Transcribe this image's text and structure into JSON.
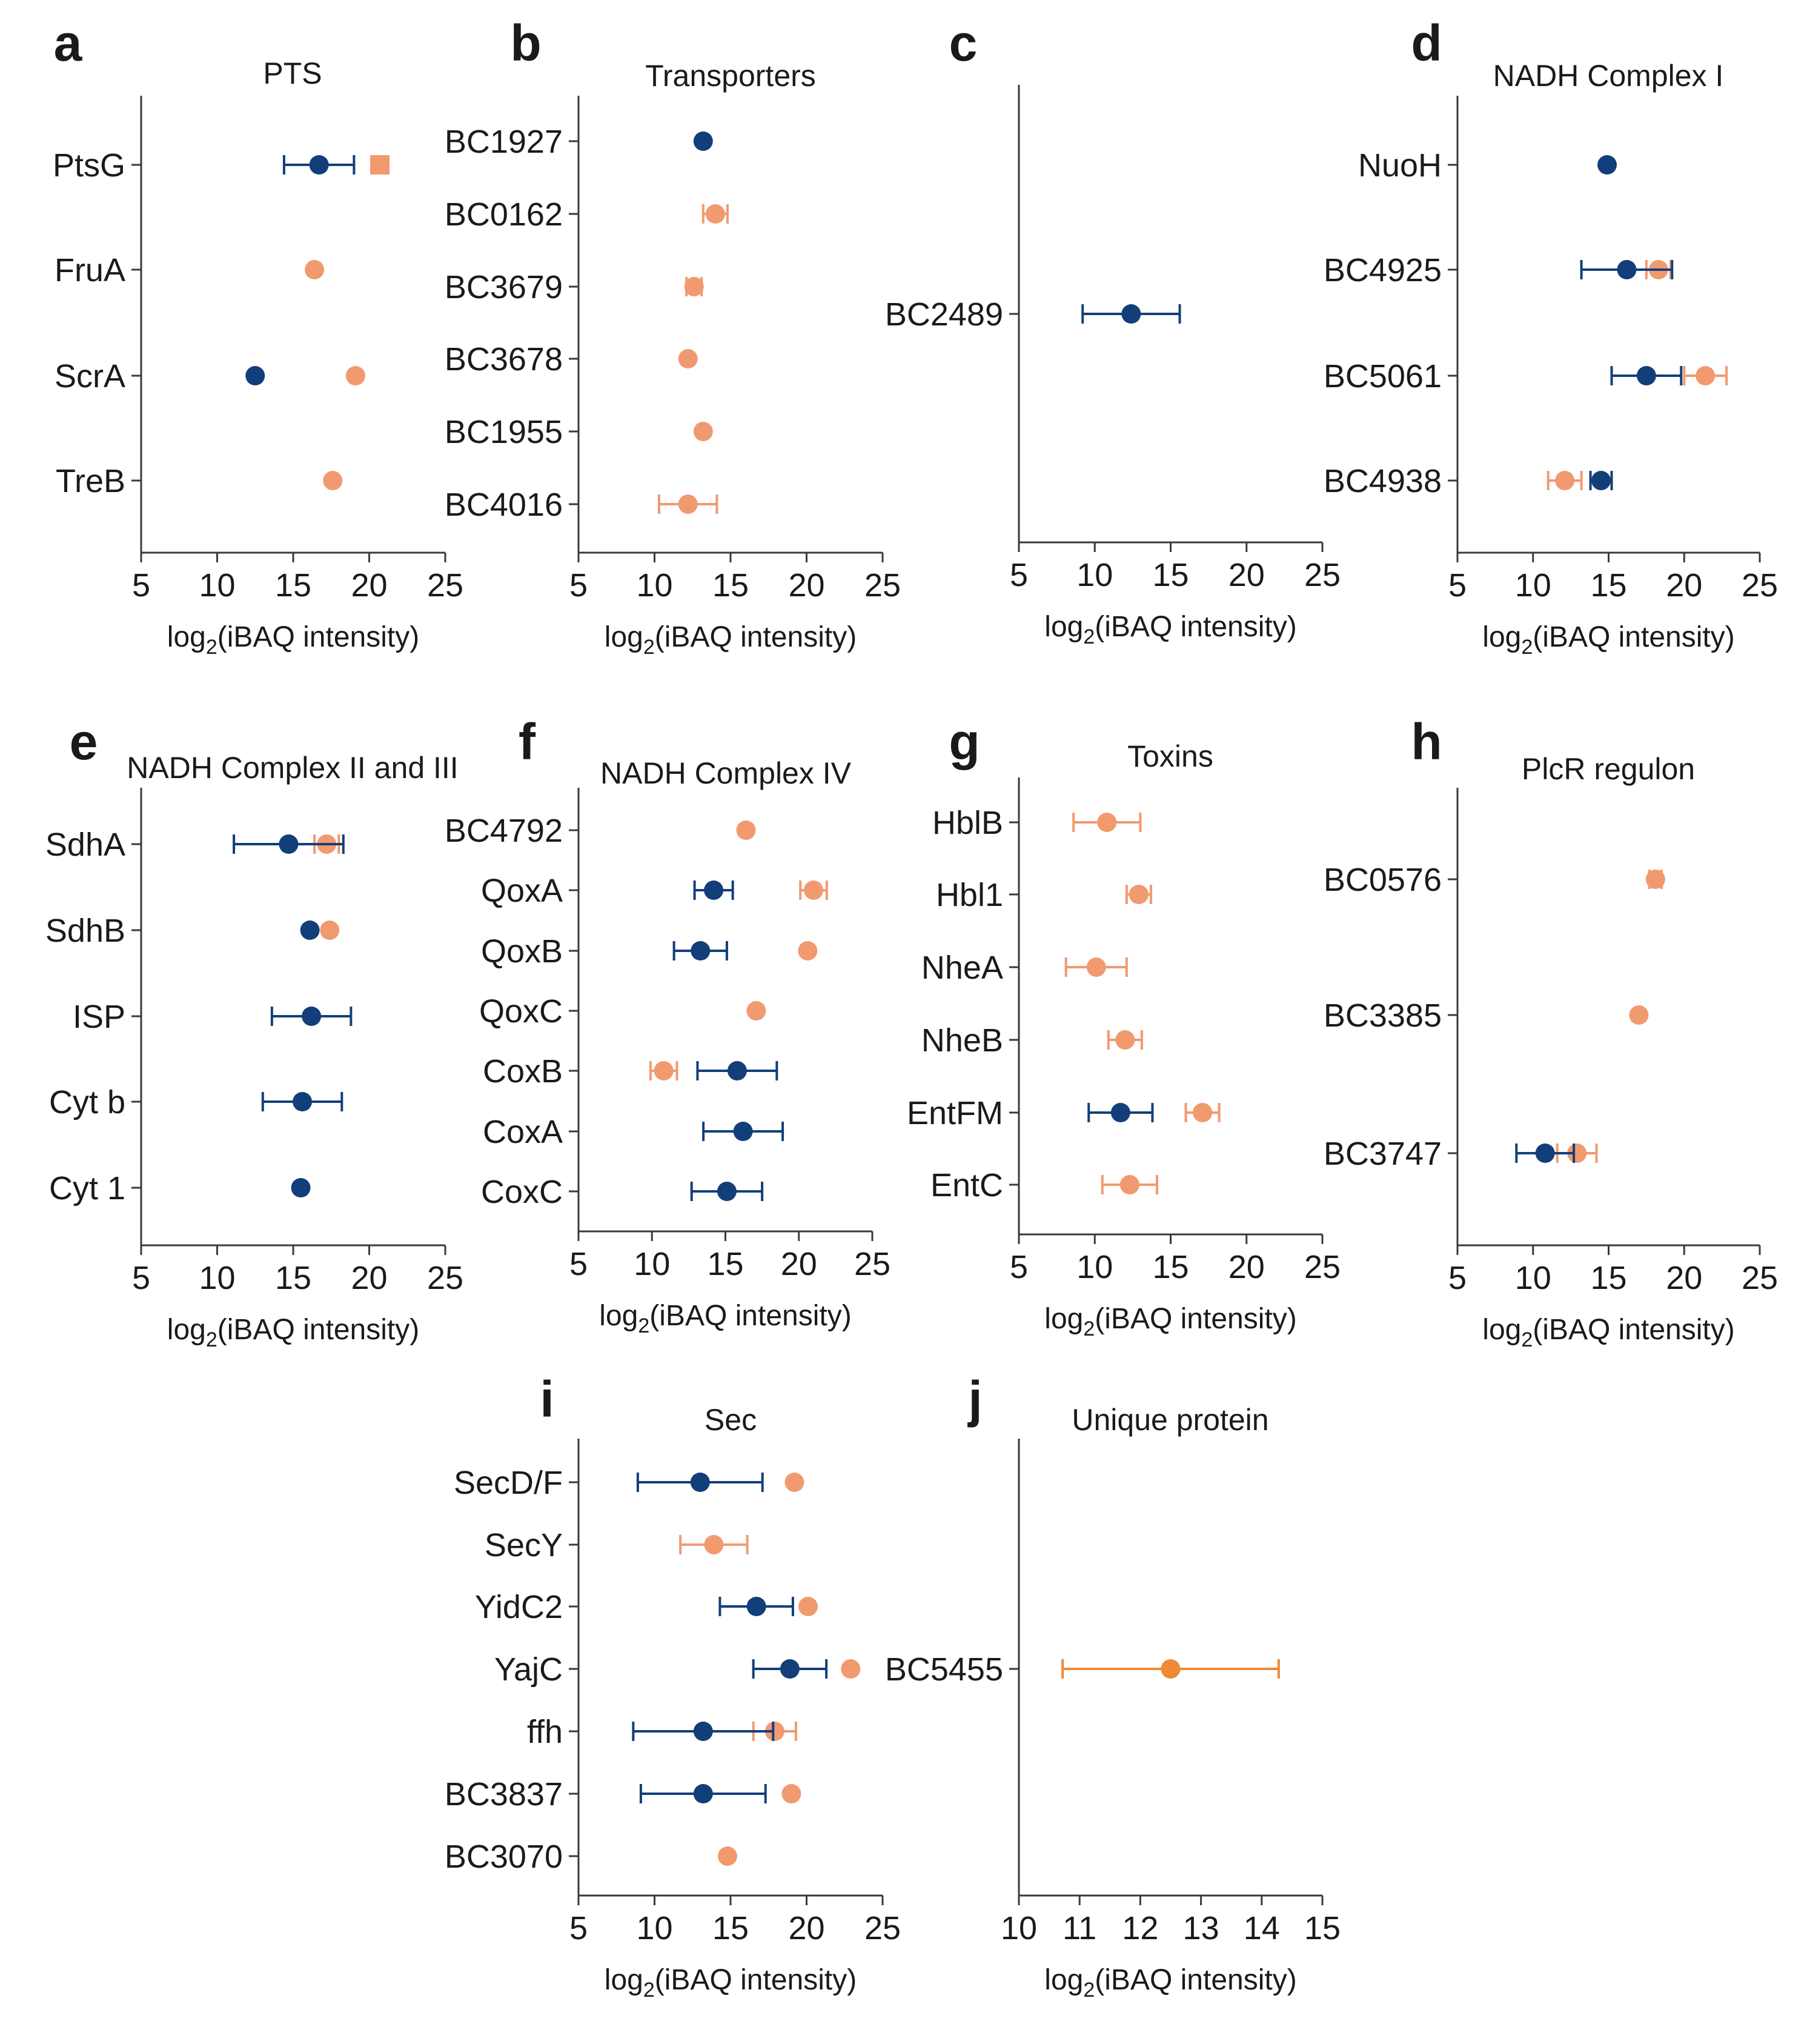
{
  "colors": {
    "blue": "#123f7a",
    "salmon": "#f19a70",
    "orange": "#ee8a35",
    "axis": "#3a3a3a"
  },
  "series_names": {
    "blue": "blue",
    "salmon": "salmon",
    "orange": "orange"
  },
  "chart_data": [
    {
      "id": "a",
      "letter": "a",
      "type": "scatter",
      "title": "PTS",
      "xlabel_prefix": "log",
      "xlabel_sub": "2",
      "xlabel_suffix": "(iBAQ intensity)",
      "xlim": [
        5,
        25
      ],
      "xticks": [
        5,
        10,
        15,
        20,
        25
      ],
      "xtick_labels": [
        "5",
        "10",
        "15",
        "20",
        "25"
      ],
      "categories": [
        "PtsG",
        "FruA",
        "ScrA",
        "TreB"
      ],
      "series": [
        {
          "name": "blue",
          "color": "#123f7a",
          "values": [
            16.7,
            null,
            12.5,
            null
          ],
          "err": [
            2.3,
            0,
            0,
            0
          ]
        },
        {
          "name": "salmon",
          "color": "#f19a70",
          "values": [
            20.7,
            16.4,
            19.1,
            17.6
          ],
          "err": [
            0,
            0,
            0,
            0
          ],
          "markers": [
            "square",
            "circle",
            "circle",
            "circle"
          ]
        }
      ]
    },
    {
      "id": "b",
      "letter": "b",
      "type": "scatter",
      "title": "Transporters",
      "xlabel_prefix": "log",
      "xlabel_sub": "2",
      "xlabel_suffix": "(iBAQ intensity)",
      "xlim": [
        5,
        25
      ],
      "xticks": [
        5,
        10,
        15,
        20,
        25
      ],
      "xtick_labels": [
        "5",
        "10",
        "15",
        "20",
        "25"
      ],
      "categories": [
        "BC1927",
        "BC0162",
        "BC3679",
        "BC3678",
        "BC1955",
        "BC4016"
      ],
      "series": [
        {
          "name": "blue",
          "color": "#123f7a",
          "values": [
            13.2,
            null,
            null,
            null,
            null,
            null
          ],
          "err": [
            0,
            0,
            0,
            0,
            0,
            0
          ]
        },
        {
          "name": "salmon",
          "color": "#f19a70",
          "values": [
            null,
            14.0,
            12.6,
            12.2,
            13.2,
            12.2
          ],
          "err": [
            0,
            0.8,
            0.5,
            0,
            0,
            1.9
          ]
        }
      ]
    },
    {
      "id": "c",
      "letter": "c",
      "type": "scatter",
      "title": "",
      "xlabel_prefix": "log",
      "xlabel_sub": "2",
      "xlabel_suffix": "(iBAQ intensity)",
      "xlim": [
        5,
        25
      ],
      "xticks": [
        5,
        10,
        15,
        20,
        25
      ],
      "xtick_labels": [
        "5",
        "10",
        "15",
        "20",
        "25"
      ],
      "categories": [
        "BC2489"
      ],
      "series": [
        {
          "name": "blue",
          "color": "#123f7a",
          "values": [
            12.4
          ],
          "err": [
            3.2
          ]
        }
      ]
    },
    {
      "id": "d",
      "letter": "d",
      "type": "scatter",
      "title": "NADH Complex I",
      "xlabel_prefix": "log",
      "xlabel_sub": "2",
      "xlabel_suffix": "(iBAQ intensity)",
      "xlim": [
        5,
        25
      ],
      "xticks": [
        5,
        10,
        15,
        20,
        25
      ],
      "xtick_labels": [
        "5",
        "10",
        "15",
        "20",
        "25"
      ],
      "categories": [
        "NuoH",
        "BC4925",
        "BC5061",
        "BC4938"
      ],
      "series": [
        {
          "name": "salmon",
          "color": "#f19a70",
          "values": [
            null,
            18.3,
            21.4,
            12.1
          ],
          "err": [
            0,
            0.8,
            1.4,
            1.1
          ]
        },
        {
          "name": "blue",
          "color": "#123f7a",
          "values": [
            14.9,
            16.2,
            17.5,
            14.5
          ],
          "err": [
            0,
            3.0,
            2.3,
            0.7
          ]
        }
      ]
    },
    {
      "id": "e",
      "letter": "e",
      "type": "scatter",
      "title": "NADH Complex II and III",
      "xlabel_prefix": "log",
      "xlabel_sub": "2",
      "xlabel_suffix": "(iBAQ intensity)",
      "xlim": [
        5,
        25
      ],
      "xticks": [
        5,
        10,
        15,
        20,
        25
      ],
      "xtick_labels": [
        "5",
        "10",
        "15",
        "20",
        "25"
      ],
      "categories": [
        "SdhA",
        "SdhB",
        "ISP",
        "Cyt b",
        "Cyt 1"
      ],
      "series": [
        {
          "name": "salmon",
          "color": "#f19a70",
          "values": [
            17.2,
            17.4,
            null,
            null,
            null
          ],
          "err": [
            0.8,
            0,
            0,
            0,
            0
          ]
        },
        {
          "name": "blue",
          "color": "#123f7a",
          "values": [
            14.7,
            16.1,
            16.2,
            15.6,
            15.5
          ],
          "err": [
            3.6,
            0,
            2.6,
            2.6,
            0
          ]
        }
      ]
    },
    {
      "id": "f",
      "letter": "f",
      "type": "scatter",
      "title": "NADH Complex IV",
      "xlabel_prefix": "log",
      "xlabel_sub": "2",
      "xlabel_suffix": "(iBAQ intensity)",
      "xlim": [
        5,
        25
      ],
      "xticks": [
        5,
        10,
        15,
        20,
        25
      ],
      "xtick_labels": [
        "5",
        "10",
        "15",
        "20",
        "25"
      ],
      "categories": [
        "BC4792",
        "QoxA",
        "QoxB",
        "QoxC",
        "CoxB",
        "CoxA",
        "CoxC"
      ],
      "series": [
        {
          "name": "salmon",
          "color": "#f19a70",
          "values": [
            16.4,
            21.0,
            20.6,
            17.1,
            10.8,
            null,
            null
          ],
          "err": [
            0,
            0.9,
            0,
            0,
            0.9,
            0,
            0
          ]
        },
        {
          "name": "blue",
          "color": "#123f7a",
          "values": [
            null,
            14.2,
            13.3,
            null,
            15.8,
            16.2,
            15.1
          ],
          "err": [
            0,
            1.3,
            1.8,
            0,
            2.7,
            2.7,
            2.4
          ]
        }
      ]
    },
    {
      "id": "g",
      "letter": "g",
      "type": "scatter",
      "title": "Toxins",
      "xlabel_prefix": "log",
      "xlabel_sub": "2",
      "xlabel_suffix": "(iBAQ intensity)",
      "xlim": [
        5,
        25
      ],
      "xticks": [
        5,
        10,
        15,
        20,
        25
      ],
      "xtick_labels": [
        "5",
        "10",
        "15",
        "20",
        "25"
      ],
      "categories": [
        "HblB",
        "Hbl1",
        "NheA",
        "NheB",
        "EntFM",
        "EntC"
      ],
      "series": [
        {
          "name": "salmon",
          "color": "#f19a70",
          "values": [
            10.8,
            12.9,
            10.1,
            12.0,
            17.1,
            12.3
          ],
          "err": [
            2.2,
            0.8,
            2.0,
            1.1,
            1.1,
            1.8
          ]
        },
        {
          "name": "blue",
          "color": "#123f7a",
          "values": [
            null,
            null,
            null,
            null,
            11.7,
            null
          ],
          "err": [
            0,
            0,
            0,
            0,
            2.1,
            0
          ]
        }
      ]
    },
    {
      "id": "h",
      "letter": "h",
      "type": "scatter",
      "title": "PlcR regulon",
      "xlabel_prefix": "log",
      "xlabel_sub": "2",
      "xlabel_suffix": "(iBAQ intensity)",
      "xlim": [
        5,
        25
      ],
      "xticks": [
        5,
        10,
        15,
        20,
        25
      ],
      "xtick_labels": [
        "5",
        "10",
        "15",
        "20",
        "25"
      ],
      "categories": [
        "BC0576",
        "BC3385",
        "BC3747"
      ],
      "series": [
        {
          "name": "salmon",
          "color": "#f19a70",
          "values": [
            18.1,
            17.0,
            12.9
          ],
          "err": [
            0.4,
            0,
            1.3
          ]
        },
        {
          "name": "blue",
          "color": "#123f7a",
          "values": [
            null,
            null,
            10.8
          ],
          "err": [
            0,
            0,
            1.9
          ]
        }
      ]
    },
    {
      "id": "i",
      "letter": "i",
      "type": "scatter",
      "title": "Sec",
      "xlabel_prefix": "log",
      "xlabel_sub": "2",
      "xlabel_suffix": "(iBAQ intensity)",
      "xlim": [
        5,
        25
      ],
      "xticks": [
        5,
        10,
        15,
        20,
        25
      ],
      "xtick_labels": [
        "5",
        "10",
        "15",
        "20",
        "25"
      ],
      "categories": [
        "SecD/F",
        "SecY",
        "YidC2",
        "YajC",
        "ffh",
        "BC3837",
        "BC3070"
      ],
      "series": [
        {
          "name": "salmon",
          "color": "#f19a70",
          "values": [
            19.2,
            13.9,
            20.1,
            22.9,
            17.9,
            19.0,
            14.8
          ],
          "err": [
            0,
            2.2,
            0,
            0,
            1.4,
            0,
            0
          ]
        },
        {
          "name": "blue",
          "color": "#123f7a",
          "values": [
            13.0,
            null,
            16.7,
            18.9,
            13.2,
            13.2,
            null
          ],
          "err": [
            4.1,
            0,
            2.4,
            2.4,
            4.6,
            4.1,
            0
          ]
        }
      ]
    },
    {
      "id": "j",
      "letter": "j",
      "type": "scatter",
      "title": "Unique protein",
      "xlabel_prefix": "log",
      "xlabel_sub": "2",
      "xlabel_suffix": "(iBAQ intensity)",
      "xlim": [
        10,
        15
      ],
      "xticks": [
        10,
        11,
        12,
        13,
        14,
        15
      ],
      "xtick_labels": [
        "10",
        "11",
        "12",
        "13",
        "14",
        "15"
      ],
      "categories": [
        "BC5455"
      ],
      "series": [
        {
          "name": "orange",
          "color": "#ee8a35",
          "values": [
            12.5
          ],
          "err": [
            1.78
          ]
        }
      ]
    }
  ]
}
